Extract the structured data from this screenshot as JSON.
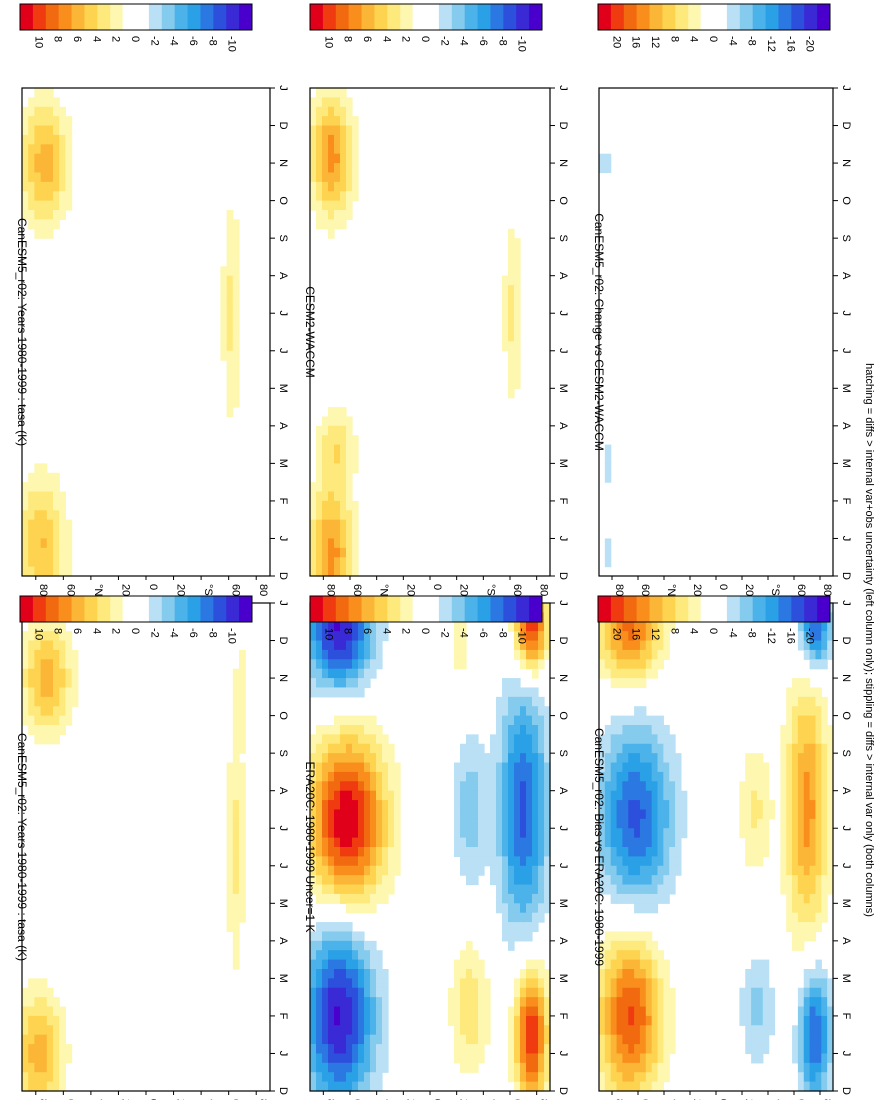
{
  "footer_note": "hatching = diffs > internal var+obs uncertainty (left column only); stippling = diffs > internal var only (both columns)",
  "colorbar_sets": {
    "small": {
      "labels": [
        "10",
        "8",
        "6",
        "4",
        "2",
        "0",
        "-2",
        "-4",
        "-6",
        "-8",
        "-10"
      ],
      "colors": [
        "#e0001a",
        "#f03a10",
        "#f26a10",
        "#f98e1c",
        "#fcb637",
        "#fdd350",
        "#fde97c",
        "#fef7b0",
        "#ffffff",
        "#ffffff",
        "#b9e0f5",
        "#85cbee",
        "#4cb3ea",
        "#2aa0e6",
        "#2c78e2",
        "#2c50dc",
        "#3a2ad6",
        "#4a00cc"
      ]
    },
    "large": {
      "labels": [
        "20",
        "16",
        "12",
        "8",
        "4",
        "0",
        "-4",
        "-8",
        "-12",
        "-16",
        "-20"
      ],
      "colors": [
        "#e0001a",
        "#f03a10",
        "#f26a10",
        "#f98e1c",
        "#fcb637",
        "#fdd350",
        "#fde97c",
        "#fef7b0",
        "#ffffff",
        "#ffffff",
        "#b9e0f5",
        "#85cbee",
        "#4cb3ea",
        "#2aa0e6",
        "#2c78e2",
        "#2c50dc",
        "#3a2ad6",
        "#4a00cc"
      ]
    }
  },
  "month_labels": [
    "D",
    "J",
    "F",
    "M",
    "A",
    "M",
    "J",
    "J",
    "A",
    "S",
    "O",
    "N",
    "D",
    "J"
  ],
  "lat_labels": [
    "80",
    "60",
    "°N",
    "20",
    "0",
    "20",
    "°S",
    "60",
    "80"
  ],
  "chart_data": [
    {
      "id": "left-top",
      "title": "CanESM5_r02: Years 1980-1999 : tasa (K)",
      "type": "heatmap",
      "colorbar": "small",
      "base": 0,
      "blobs": [
        {
          "month": 1.0,
          "lat": 78,
          "dm": 1.6,
          "dlat": 18,
          "v": 5
        },
        {
          "month": 11.0,
          "lat": 72,
          "dm": 1.5,
          "dlat": 18,
          "v": 5
        },
        {
          "month": 6.5,
          "lat": -65,
          "dm": 3.5,
          "dlat": 7,
          "v": 2.5
        },
        {
          "month": 10.8,
          "lat": -70,
          "dm": 1.2,
          "dlat": 6,
          "v": 1.5
        }
      ]
    },
    {
      "id": "right-top",
      "title": "CanESM5_r02: Years 1980-1999 : tasa (K)",
      "type": "heatmap",
      "colorbar": "small",
      "base": 0,
      "blobs": [
        {
          "month": 0.8,
          "lat": 76,
          "dm": 1.8,
          "dlat": 18,
          "v": 4.5
        },
        {
          "month": 11.0,
          "lat": 74,
          "dm": 1.6,
          "dlat": 18,
          "v": 5
        },
        {
          "month": 7.0,
          "lat": -62,
          "dm": 3.2,
          "dlat": 7,
          "v": 2.5
        }
      ]
    },
    {
      "id": "left-middle",
      "title": "ERA20C: 1980-1999 Uncer=1 K",
      "type": "heatmap",
      "colorbar": "small",
      "base": 0,
      "blobs": [
        {
          "month": 2.0,
          "lat": 68,
          "dm": 2.4,
          "dlat": 26,
          "v": -9
        },
        {
          "month": 12.3,
          "lat": 68,
          "dm": 1.6,
          "dlat": 24,
          "v": -9
        },
        {
          "month": 7.2,
          "lat": 62,
          "dm": 2.2,
          "dlat": 28,
          "v": 10
        },
        {
          "month": 1.5,
          "lat": -76,
          "dm": 1.8,
          "dlat": 12,
          "v": 9
        },
        {
          "month": 12.4,
          "lat": -76,
          "dm": 1.2,
          "dlat": 12,
          "v": 9
        },
        {
          "month": 7.5,
          "lat": -70,
          "dm": 3.2,
          "dlat": 18,
          "v": -7
        },
        {
          "month": 2.2,
          "lat": -30,
          "dm": 1.8,
          "dlat": 15,
          "v": 3
        },
        {
          "month": 7.5,
          "lat": -30,
          "dm": 2.0,
          "dlat": 12,
          "v": -3
        },
        {
          "month": 12.0,
          "lat": -22,
          "dm": 1.2,
          "dlat": 8,
          "v": 2
        }
      ]
    },
    {
      "id": "right-middle",
      "title": "CESM2-WACCM",
      "type": "heatmap",
      "colorbar": "small",
      "base": 0,
      "blobs": [
        {
          "month": 0.6,
          "lat": 74,
          "dm": 1.8,
          "dlat": 16,
          "v": 6
        },
        {
          "month": 11.2,
          "lat": 74,
          "dm": 1.6,
          "dlat": 16,
          "v": 6
        },
        {
          "month": 3.5,
          "lat": 70,
          "dm": 1.0,
          "dlat": 14,
          "v": 3
        },
        {
          "month": 7.0,
          "lat": -62,
          "dm": 2.5,
          "dlat": 7,
          "v": 2.5
        }
      ]
    },
    {
      "id": "left-bottom",
      "title": "CanESM5_r02: Bias vs ERA20C: 1980-1999",
      "type": "heatmap",
      "colorbar": "large",
      "base": 0,
      "blobs": [
        {
          "month": 2.0,
          "lat": 66,
          "dm": 2.2,
          "dlat": 24,
          "v": 16
        },
        {
          "month": 12.3,
          "lat": 66,
          "dm": 1.4,
          "dlat": 24,
          "v": 14
        },
        {
          "month": 7.3,
          "lat": 62,
          "dm": 2.4,
          "dlat": 28,
          "v": -14
        },
        {
          "month": 7.5,
          "lat": -70,
          "dm": 3.4,
          "dlat": 16,
          "v": 12
        },
        {
          "month": 1.5,
          "lat": -76,
          "dm": 1.8,
          "dlat": 12,
          "v": -14
        },
        {
          "month": 12.4,
          "lat": -76,
          "dm": 1.2,
          "dlat": 12,
          "v": -14
        },
        {
          "month": 2.2,
          "lat": -32,
          "dm": 1.6,
          "dlat": 14,
          "v": -5
        },
        {
          "month": 7.5,
          "lat": -30,
          "dm": 1.8,
          "dlat": 12,
          "v": 5
        }
      ]
    },
    {
      "id": "right-bottom",
      "title": "CanESM5_r02: Change vs CESM2-WACCM",
      "type": "heatmap",
      "colorbar": "large",
      "base": 0,
      "blobs": [
        {
          "month": 3.0,
          "lat": 84,
          "dm": 0.5,
          "dlat": 5,
          "v": -4
        },
        {
          "month": 11.0,
          "lat": 85,
          "dm": 0.4,
          "dlat": 4,
          "v": -4
        },
        {
          "month": 0.6,
          "lat": 84,
          "dm": 0.5,
          "dlat": 4,
          "v": -4
        }
      ]
    }
  ]
}
